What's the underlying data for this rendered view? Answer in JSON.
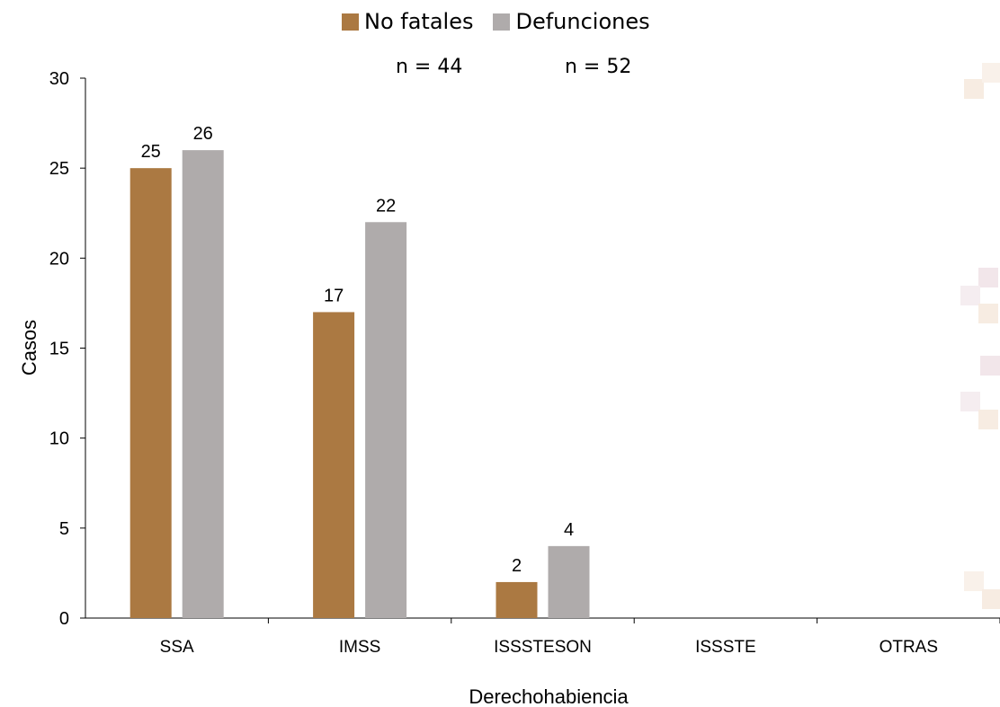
{
  "chart_data": {
    "type": "bar",
    "title": "",
    "xlabel": "Derechohabiencia",
    "ylabel": "Casos",
    "ylim": [
      0,
      30
    ],
    "yticks": [
      0,
      5,
      10,
      15,
      20,
      25,
      30
    ],
    "categories": [
      "SSA",
      "IMSS",
      "ISSSTESON",
      "ISSSTE",
      "OTRAS"
    ],
    "series": [
      {
        "name": "No fatales",
        "color": "#AB7942",
        "values": [
          25,
          17,
          2,
          0,
          0
        ],
        "labels": [
          "25",
          "17",
          "2",
          "",
          ""
        ]
      },
      {
        "name": "Defunciones",
        "color": "#AFABAB",
        "values": [
          26,
          22,
          4,
          0,
          0
        ],
        "labels": [
          "26",
          "22",
          "4",
          "",
          ""
        ]
      }
    ],
    "annotations": [
      "n = 44",
      "n = 52"
    ],
    "legend_position": "top-center",
    "grid": false
  }
}
